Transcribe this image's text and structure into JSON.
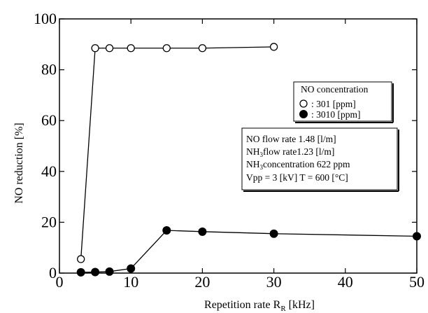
{
  "chart_data": {
    "type": "line",
    "xlabel_main": "Repetition rate R",
    "xlabel_sub": "R",
    "xlabel_unit": " [kHz]",
    "ylabel": "NO reduction [%]",
    "xlim": [
      0,
      50
    ],
    "ylim": [
      0,
      100
    ],
    "x_ticks": [
      0,
      10,
      20,
      30,
      40,
      50
    ],
    "y_ticks": [
      0,
      20,
      40,
      60,
      80,
      100
    ],
    "grid": false,
    "legend": {
      "title": "NO concentration",
      "placement": "right",
      "entries": [
        ": 301 [ppm]",
        ": 3010 [ppm]"
      ]
    },
    "series": [
      {
        "name": ": 301 [ppm]",
        "marker": "open-circle",
        "x": [
          3,
          5,
          7,
          10,
          15,
          20,
          30
        ],
        "y": [
          5.5,
          88.5,
          88.5,
          88.5,
          88.5,
          88.5,
          89
        ]
      },
      {
        "name": ": 3010 [ppm]",
        "marker": "filled-circle",
        "x": [
          3,
          5,
          7,
          10,
          15,
          20,
          30,
          50
        ],
        "y": [
          0.3,
          0.4,
          0.6,
          1.8,
          16.8,
          16.3,
          15.5,
          14.5
        ]
      }
    ],
    "conditions": {
      "line1": "NO flow rate 1.48 [l/m]",
      "line2_pre": "NH",
      "line2_sub": "3",
      "line2_post": "flow rate1.23 [l/m]",
      "line3_pre": "NH",
      "line3_sub": "3",
      "line3_post": "concentration 622 ppm",
      "line4": "Vpp = 3 [kV] T = 600 [°C]"
    },
    "colors": {
      "line": "#000000",
      "open_fill": "#ffffff",
      "filled_fill": "#000000"
    }
  }
}
